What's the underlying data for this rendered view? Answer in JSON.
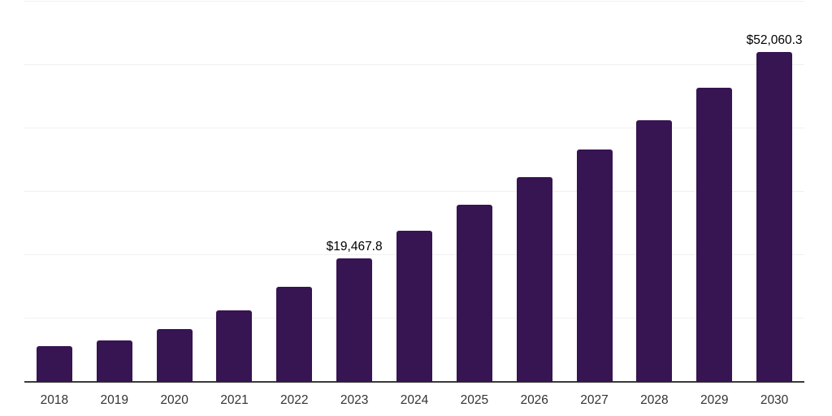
{
  "chart_data": {
    "type": "bar",
    "title": "",
    "xlabel": "",
    "ylabel": "",
    "categories": [
      "2018",
      "2019",
      "2020",
      "2021",
      "2022",
      "2023",
      "2024",
      "2025",
      "2026",
      "2027",
      "2028",
      "2029",
      "2030"
    ],
    "values": [
      5630,
      6530,
      8320,
      11260,
      14980,
      19467.8,
      23810,
      27900,
      32260,
      36610,
      41340,
      46460,
      52060.3
    ],
    "point_labels": [
      "",
      "",
      "",
      "",
      "",
      "$19,467.8",
      "",
      "",
      "",
      "",
      "",
      "",
      "$52,060.3"
    ],
    "ylim": [
      0,
      60000
    ],
    "gridline_step": 10000,
    "grid": true,
    "legend": false,
    "y_axis_tick_labels_visible": false,
    "colors": {
      "bar": "#371452",
      "axis": "#3a3a3a",
      "grid": "#f0f0f0",
      "tick_label": "#333333",
      "value_label": "#000000",
      "background": "#ffffff"
    }
  }
}
